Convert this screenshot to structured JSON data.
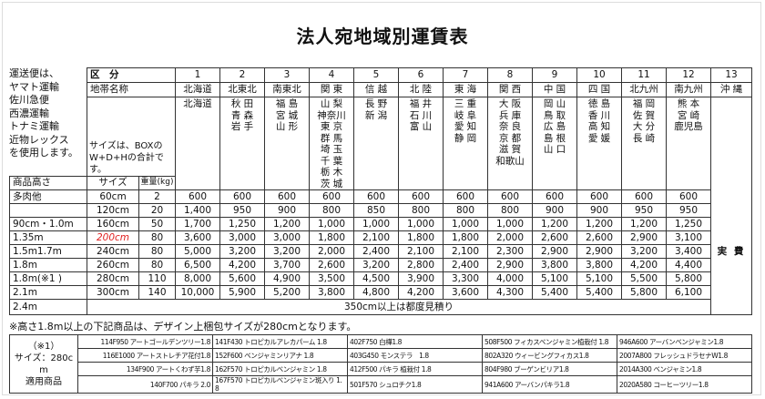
{
  "title": "法人宛地域別運賃表",
  "notes": [
    "運送便は、",
    "ヤマト運輸",
    "佐川急便",
    "西濃運輸",
    "トナミ運輸",
    "近物レックス",
    "を使用します。"
  ],
  "header": {
    "division_label": "区　分",
    "zone_label": "地帯名称",
    "size_note": [
      "サイズは、BOXの",
      "W+D+Hの合計です。"
    ],
    "height_label": "商品高さ",
    "size_label": "サイズ",
    "weight_label": "重量(kg)"
  },
  "zones": [
    {
      "no": "1",
      "name": "北海道",
      "places": [
        "北海道"
      ]
    },
    {
      "no": "2",
      "name": "北東北",
      "places": [
        "秋 田",
        "青 森",
        "岩 手"
      ]
    },
    {
      "no": "3",
      "name": "南東北",
      "places": [
        "福 島",
        "宮 城",
        "山 形"
      ]
    },
    {
      "no": "4",
      "name": "関 東",
      "places": [
        "山 梨",
        "神奈川",
        "東 京",
        "群 馬",
        "埼 玉",
        "千 葉",
        "栃 木",
        "茨 城"
      ]
    },
    {
      "no": "5",
      "name": "信 越",
      "places": [
        "長 野",
        "新 潟"
      ]
    },
    {
      "no": "6",
      "name": "北 陸",
      "places": [
        "福 井",
        "石 川",
        "富 山"
      ]
    },
    {
      "no": "7",
      "name": "東 海",
      "places": [
        "三 重",
        "岐 阜",
        "愛 知",
        "静 岡"
      ]
    },
    {
      "no": "8",
      "name": "関 西",
      "places": [
        "大 阪",
        "兵 庫",
        "奈 良",
        "京 都",
        "滋 賀",
        "和歌山"
      ]
    },
    {
      "no": "9",
      "name": "中 国",
      "places": [
        "岡 山",
        "鳥 取",
        "広 島",
        "島 根",
        "山 口"
      ]
    },
    {
      "no": "10",
      "name": "四 国",
      "places": [
        "徳 島",
        "香 川",
        "高 知",
        "愛 媛"
      ]
    },
    {
      "no": "11",
      "name": "北九州",
      "places": [
        "福 岡",
        "佐 賀",
        "大 分",
        "長 崎"
      ]
    },
    {
      "no": "12",
      "name": "南九州",
      "places": [
        "熊 本",
        "宮 崎",
        "鹿児島"
      ]
    },
    {
      "no": "13",
      "name": "沖 縄",
      "places": []
    }
  ],
  "rows": [
    {
      "height": "多肉他",
      "size": "60cm",
      "weight": "2",
      "prices": [
        "600",
        "600",
        "600",
        "600",
        "600",
        "600",
        "600",
        "600",
        "600",
        "600",
        "600",
        "600"
      ]
    },
    {
      "height": "",
      "size": "120cm",
      "weight": "20",
      "prices": [
        "1,400",
        "950",
        "900",
        "800",
        "850",
        "800",
        "800",
        "800",
        "900",
        "900",
        "950",
        "950"
      ]
    },
    {
      "height": "90cm・1.0m",
      "size": "160cm",
      "weight": "50",
      "prices": [
        "1,700",
        "1,250",
        "1,200",
        "1,000",
        "1,000",
        "1,000",
        "1,000",
        "1,000",
        "1,200",
        "1,200",
        "1,200",
        "1,250"
      ]
    },
    {
      "height": "1.35m",
      "size": "200cm",
      "size_highlight": "#e02020",
      "weight": "80",
      "prices": [
        "3,600",
        "3,000",
        "3,000",
        "1,800",
        "2,100",
        "1,800",
        "1,800",
        "2,000",
        "2,600",
        "2,600",
        "2,900",
        "3,100"
      ]
    },
    {
      "height": "1.5m1.7m",
      "size": "240cm",
      "weight": "80",
      "prices": [
        "5,000",
        "3,200",
        "3,200",
        "2,000",
        "2,400",
        "2,100",
        "2,100",
        "2,300",
        "2,900",
        "2,900",
        "3,200",
        "3,400"
      ]
    },
    {
      "height": "1.8m",
      "size": "260cm",
      "weight": "80",
      "prices": [
        "6,500",
        "4,200",
        "3,700",
        "2,600",
        "3,200",
        "2,800",
        "2,400",
        "2,900",
        "3,800",
        "3,800",
        "4,200",
        "4,400"
      ]
    },
    {
      "height": "1.8m(※1 )",
      "size": "280cm",
      "weight": "110",
      "prices": [
        "8,000",
        "5,600",
        "4,900",
        "3,500",
        "4,500",
        "3,900",
        "3,300",
        "4,000",
        "5,100",
        "5,100",
        "5,500",
        "5,800"
      ]
    },
    {
      "height": "2.1m",
      "size": "300cm",
      "weight": "140",
      "prices": [
        "10,000",
        "5,900",
        "5,200",
        "3,800",
        "4,800",
        "4,200",
        "3,600",
        "4,300",
        "5,400",
        "5,400",
        "5,800",
        "6,100"
      ]
    }
  ],
  "last_row": {
    "height": "2.4m",
    "text": "350cm以上は都度見積り"
  },
  "okinawa_price": "実 費",
  "footnote": "※高さ1.8m以上の下記商品は、デザイン上梱包サイズが280cmとなります。",
  "applicable": {
    "label": [
      "（※1）",
      "サイズ：280cm",
      "適用商品"
    ],
    "rows": [
      [
        "114F950 アートゴールデンツリー1.8",
        "141F430 トロピカルアレカパーム 1.8",
        "402F750 白樺1.8",
        "508F500 フィカスベンジャミン植栽付 1.8",
        "946A600 アーバンベンジャミン1.8"
      ],
      [
        "116E1000 アートストレチア花付1.8",
        "152F600 ベンジャミンリアナ 1.8",
        "403G450 モンステラ　1.8",
        "802A320 ウィービングフィカス1.8",
        "2007A800 フレッシュドラセナW1.8"
      ],
      [
        "134F900 アートくわず芋1.8",
        "162F570 トロピカルベンジャミン 1.8",
        "412F500 パキラ 植栽付 1.8",
        "804F980 ブーゲンビリア1.8",
        "2014A300 ベンジャミン1.8"
      ],
      [
        "140F700 パキラ 2.0",
        "167F570 トロピカルベンジャミン斑入り 1.8",
        "501F570 シュロチク1.8",
        "941A600 アーバンパキラ1.8",
        "2020A580 コーヒーツリー1.8"
      ]
    ]
  }
}
